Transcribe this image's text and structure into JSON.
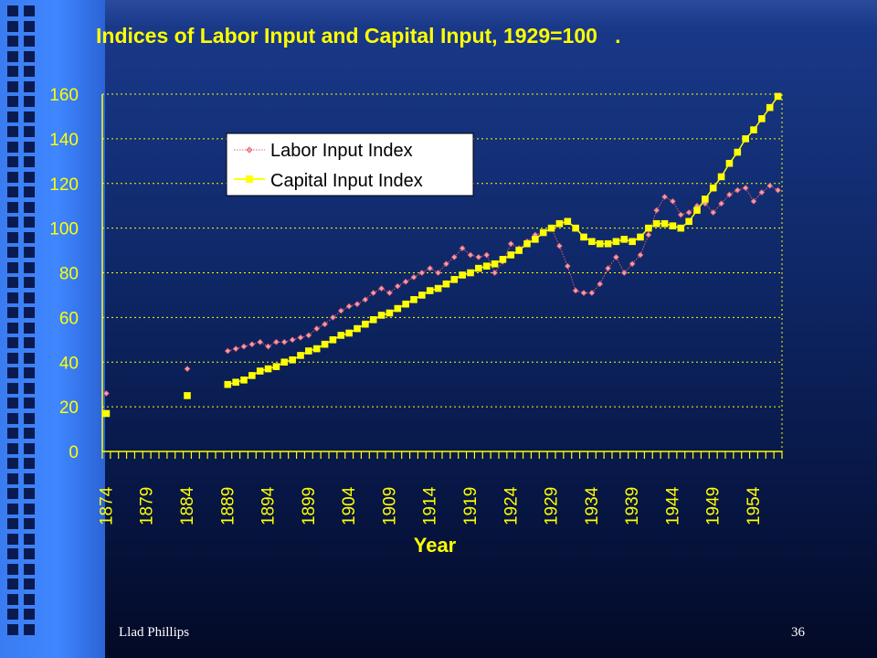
{
  "slide": {
    "footer_author": "Llad Phillips",
    "page_number": "36"
  },
  "colors": {
    "background": "#0f2868",
    "accent_bar": "#3f86ff",
    "title": "#ffff00",
    "axis_text": "#ffff00",
    "grid": "#ffff00",
    "labor_series": "#e06070",
    "capital_series": "#ffff00"
  },
  "chart_data": {
    "type": "line",
    "title": "Indices of Labor Input and Capital Input, 1929=100   .",
    "xlabel": "Year",
    "ylabel": "",
    "ylim": [
      0,
      160
    ],
    "yticks": [
      "0",
      "20",
      "40",
      "60",
      "80",
      "100",
      "120",
      "140",
      "160"
    ],
    "xlim": [
      1874,
      1957
    ],
    "xtick_labels": [
      "1874",
      "1879",
      "1884",
      "1889",
      "1894",
      "1899",
      "1904",
      "1909",
      "1914",
      "1919",
      "1924",
      "1929",
      "1934",
      "1939",
      "1944",
      "1949",
      "1954"
    ],
    "grid": "horizontal dotted",
    "legend_position": "upper-left inside plot",
    "series": [
      {
        "name": "Labor Input Index",
        "marker": "diamond",
        "points": [
          [
            1874,
            26
          ],
          [
            1884,
            37
          ],
          [
            1889,
            45
          ],
          [
            1890,
            46
          ],
          [
            1891,
            47
          ],
          [
            1892,
            48
          ],
          [
            1893,
            49
          ],
          [
            1894,
            47
          ],
          [
            1895,
            49
          ],
          [
            1896,
            49
          ],
          [
            1897,
            50
          ],
          [
            1898,
            51
          ],
          [
            1899,
            52
          ],
          [
            1900,
            55
          ],
          [
            1901,
            57
          ],
          [
            1902,
            60
          ],
          [
            1903,
            63
          ],
          [
            1904,
            65
          ],
          [
            1905,
            66
          ],
          [
            1906,
            68
          ],
          [
            1907,
            71
          ],
          [
            1908,
            73
          ],
          [
            1909,
            71
          ],
          [
            1910,
            74
          ],
          [
            1911,
            76
          ],
          [
            1912,
            78
          ],
          [
            1913,
            80
          ],
          [
            1914,
            82
          ],
          [
            1915,
            80
          ],
          [
            1916,
            84
          ],
          [
            1917,
            87
          ],
          [
            1918,
            91
          ],
          [
            1919,
            88
          ],
          [
            1920,
            87
          ],
          [
            1921,
            88
          ],
          [
            1922,
            80
          ],
          [
            1923,
            85
          ],
          [
            1924,
            93
          ],
          [
            1925,
            91
          ],
          [
            1926,
            94
          ],
          [
            1927,
            97
          ],
          [
            1928,
            98
          ],
          [
            1929,
            100
          ],
          [
            1930,
            92
          ],
          [
            1931,
            83
          ],
          [
            1932,
            72
          ],
          [
            1933,
            71
          ],
          [
            1934,
            71
          ],
          [
            1935,
            75
          ],
          [
            1936,
            82
          ],
          [
            1937,
            87
          ],
          [
            1938,
            80
          ],
          [
            1939,
            84
          ],
          [
            1940,
            88
          ],
          [
            1941,
            97
          ],
          [
            1942,
            108
          ],
          [
            1943,
            114
          ],
          [
            1944,
            112
          ],
          [
            1945,
            106
          ],
          [
            1946,
            107
          ],
          [
            1947,
            110
          ],
          [
            1948,
            111
          ],
          [
            1949,
            107
          ],
          [
            1950,
            111
          ],
          [
            1951,
            115
          ],
          [
            1952,
            117
          ],
          [
            1953,
            118
          ],
          [
            1954,
            112
          ],
          [
            1955,
            116
          ],
          [
            1956,
            119
          ],
          [
            1957,
            117
          ]
        ]
      },
      {
        "name": "Capital Input Index",
        "marker": "square",
        "points": [
          [
            1874,
            17
          ],
          [
            1884,
            25
          ],
          [
            1889,
            30
          ],
          [
            1890,
            31
          ],
          [
            1891,
            32
          ],
          [
            1892,
            34
          ],
          [
            1893,
            36
          ],
          [
            1894,
            37
          ],
          [
            1895,
            38
          ],
          [
            1896,
            40
          ],
          [
            1897,
            41
          ],
          [
            1898,
            43
          ],
          [
            1899,
            45
          ],
          [
            1900,
            46
          ],
          [
            1901,
            48
          ],
          [
            1902,
            50
          ],
          [
            1903,
            52
          ],
          [
            1904,
            53
          ],
          [
            1905,
            55
          ],
          [
            1906,
            57
          ],
          [
            1907,
            59
          ],
          [
            1908,
            61
          ],
          [
            1909,
            62
          ],
          [
            1910,
            64
          ],
          [
            1911,
            66
          ],
          [
            1912,
            68
          ],
          [
            1913,
            70
          ],
          [
            1914,
            72
          ],
          [
            1915,
            73
          ],
          [
            1916,
            75
          ],
          [
            1917,
            77
          ],
          [
            1918,
            79
          ],
          [
            1919,
            80
          ],
          [
            1920,
            82
          ],
          [
            1921,
            83
          ],
          [
            1922,
            84
          ],
          [
            1923,
            86
          ],
          [
            1924,
            88
          ],
          [
            1925,
            90
          ],
          [
            1926,
            93
          ],
          [
            1927,
            95
          ],
          [
            1928,
            98
          ],
          [
            1929,
            100
          ],
          [
            1930,
            102
          ],
          [
            1931,
            103
          ],
          [
            1932,
            100
          ],
          [
            1933,
            96
          ],
          [
            1934,
            94
          ],
          [
            1935,
            93
          ],
          [
            1936,
            93
          ],
          [
            1937,
            94
          ],
          [
            1938,
            95
          ],
          [
            1939,
            94
          ],
          [
            1940,
            96
          ],
          [
            1941,
            100
          ],
          [
            1942,
            102
          ],
          [
            1943,
            102
          ],
          [
            1944,
            101
          ],
          [
            1945,
            100
          ],
          [
            1946,
            103
          ],
          [
            1947,
            108
          ],
          [
            1948,
            113
          ],
          [
            1949,
            118
          ],
          [
            1950,
            123
          ],
          [
            1951,
            129
          ],
          [
            1952,
            134
          ],
          [
            1953,
            140
          ],
          [
            1954,
            144
          ],
          [
            1955,
            149
          ],
          [
            1956,
            154
          ],
          [
            1957,
            159
          ]
        ]
      }
    ]
  }
}
